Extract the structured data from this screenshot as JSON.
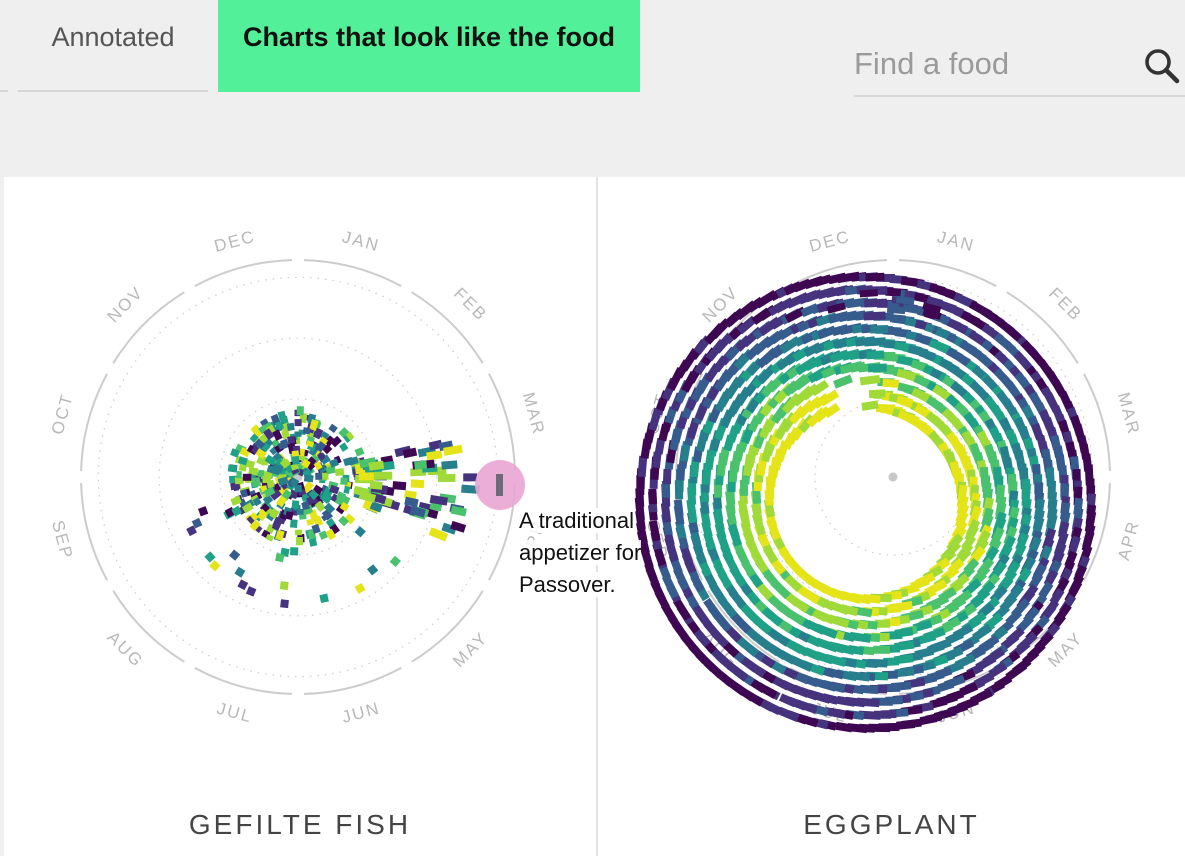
{
  "tabs": {
    "annotated": "Annotated",
    "charts_like_food": "Charts that look like the food"
  },
  "search": {
    "placeholder": "Find a food"
  },
  "months": [
    "JAN",
    "FEB",
    "MAR",
    "APR",
    "MAY",
    "JUN",
    "JUL",
    "AUG",
    "SEP",
    "OCT",
    "NOV",
    "DEC"
  ],
  "foods": [
    {
      "name": "GEFILTE FISH",
      "tooltip": "A traditional appetizer for Passover."
    },
    {
      "name": "EGGPLANT"
    }
  ],
  "colors": {
    "accent": "#52f098",
    "highlight": "#e9a6d3",
    "viridis": [
      "#3e0751",
      "#46337e",
      "#365c8d",
      "#277f8e",
      "#1fa187",
      "#4ac16d",
      "#a0da39",
      "#e4e419"
    ]
  },
  "chart_data": [
    {
      "type": "radial-scatter",
      "title": "GEFILTE FISH",
      "angular_axis": [
        "JAN",
        "FEB",
        "MAR",
        "APR",
        "MAY",
        "JUN",
        "JUL",
        "AUG",
        "SEP",
        "OCT",
        "NOV",
        "DEC"
      ],
      "highlight_month": "MAR",
      "annotation": "A traditional appetizer for Passover."
    },
    {
      "type": "radial-scatter",
      "title": "EGGPLANT",
      "angular_axis": [
        "JAN",
        "FEB",
        "MAR",
        "APR",
        "MAY",
        "JUN",
        "JUL",
        "AUG",
        "SEP",
        "OCT",
        "NOV",
        "DEC"
      ]
    }
  ]
}
